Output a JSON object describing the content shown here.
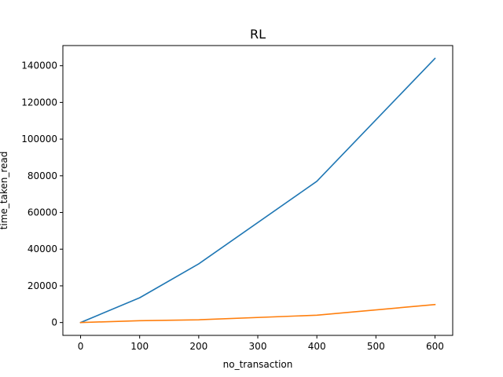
{
  "chart_data": {
    "type": "line",
    "title": "RL",
    "xlabel": "no_transaction",
    "ylabel": "time_taken_read",
    "xlim": [
      -30,
      630
    ],
    "ylim": [
      -7000,
      151000
    ],
    "x_ticks": [
      0,
      100,
      200,
      300,
      400,
      500,
      600
    ],
    "y_ticks": [
      0,
      20000,
      40000,
      60000,
      80000,
      100000,
      120000,
      140000
    ],
    "grid": false,
    "legend": "none",
    "x": [
      0,
      100,
      200,
      400,
      600
    ],
    "series": [
      {
        "color": "#1f77b4",
        "values": [
          0,
          13500,
          32000,
          77000,
          144000
        ]
      },
      {
        "color": "#ff7f0e",
        "values": [
          0,
          1000,
          1500,
          4000,
          9800
        ]
      }
    ]
  }
}
